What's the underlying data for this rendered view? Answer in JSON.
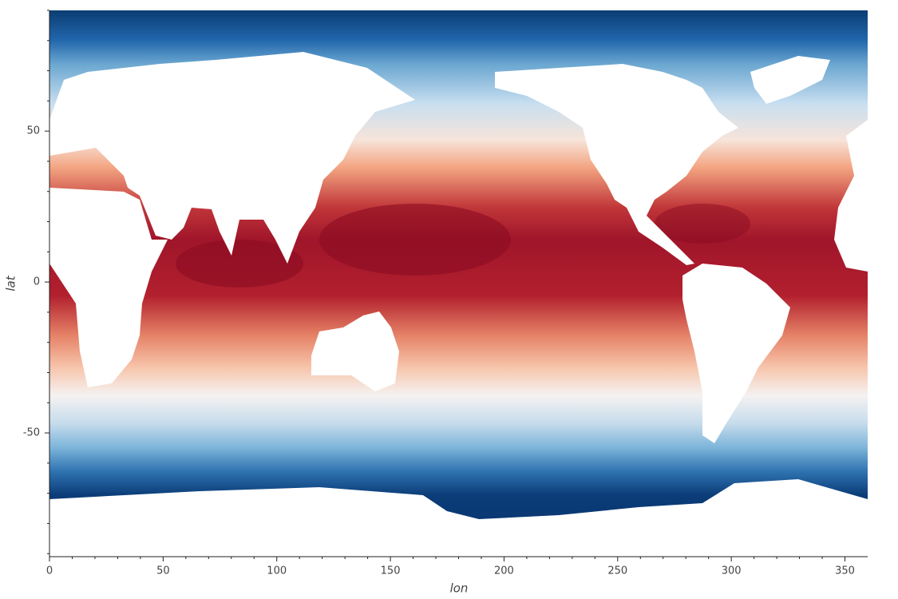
{
  "chart_data": {
    "type": "image",
    "xlabel": "lon",
    "ylabel": "lat",
    "xlim": [
      0,
      360
    ],
    "ylim": [
      -91,
      90
    ],
    "xticks": [
      0,
      50,
      100,
      150,
      200,
      250,
      300,
      350
    ],
    "yticks": [
      -50,
      0,
      50
    ],
    "x_minor_ticks": [
      10,
      20,
      30,
      40,
      60,
      70,
      80,
      90,
      110,
      120,
      130,
      140,
      160,
      170,
      180,
      190,
      210,
      220,
      230,
      240,
      260,
      270,
      280,
      290,
      310,
      320,
      330,
      340
    ],
    "y_minor_ticks": [
      -90,
      -80,
      -70,
      -60,
      -40,
      -30,
      -20,
      -10,
      10,
      20,
      30,
      40,
      60,
      70,
      80,
      90
    ]
  }
}
